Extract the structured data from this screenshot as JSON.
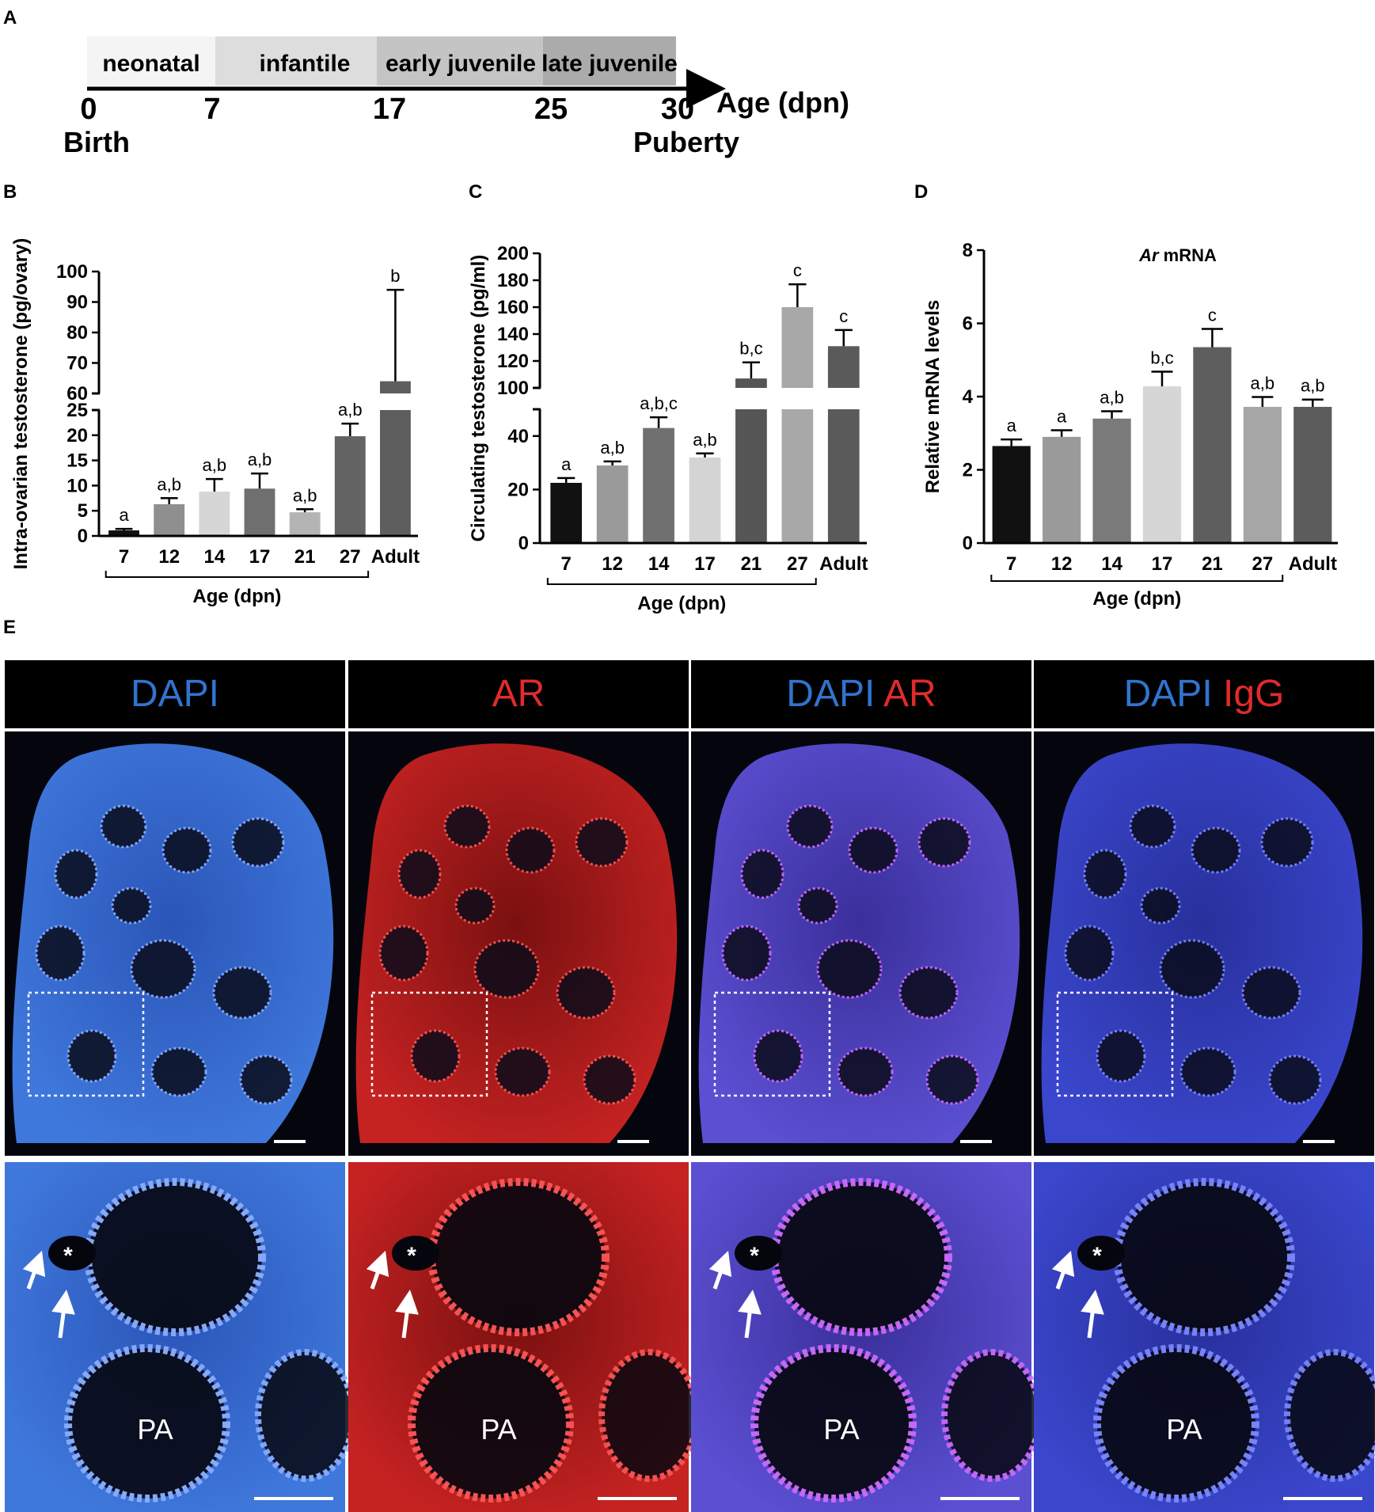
{
  "panel_labels": {
    "a": "A",
    "b": "B",
    "c": "C",
    "d": "D",
    "e": "E"
  },
  "timeline": {
    "stages": [
      "neonatal",
      "infantile",
      "early juvenile",
      "late juvenile"
    ],
    "stage_colors": [
      "#f4f4f4",
      "#dddddd",
      "#c4c4c4",
      "#ababab"
    ],
    "ticks": [
      "0",
      "7",
      "17",
      "25",
      "30"
    ],
    "axis_label": "Age (dpn)",
    "start_label": "Birth",
    "end_label": "Puberty"
  },
  "chart_data": [
    {
      "panel": "B",
      "type": "bar",
      "categories": [
        "7",
        "12",
        "14",
        "17",
        "21",
        "27",
        "Adult"
      ],
      "values": [
        1.1,
        6.3,
        8.8,
        9.4,
        4.7,
        19.8,
        64.0
      ],
      "errors": [
        0.3,
        1.2,
        2.5,
        3.0,
        0.6,
        2.5,
        30.0
      ],
      "letters": [
        "a",
        "a,b",
        "a,b",
        "a,b",
        "a,b",
        "a,b",
        "b"
      ],
      "colors": [
        "#111111",
        "#8f8f8f",
        "#d6d6d6",
        "#6f6f6f",
        "#b4b4b4",
        "#636363",
        "#5e5e5e"
      ],
      "ylabel": "Intra-ovarian testosterone (pg/ovary)",
      "xlabel": "Age (dpn)",
      "y_ticks_low": [
        "0",
        "5",
        "10",
        "15",
        "20",
        "25"
      ],
      "y_ticks_high": [
        "60",
        "70",
        "80",
        "90",
        "100"
      ],
      "ylim_low": [
        0,
        25
      ],
      "ylim_high": [
        60,
        100
      ]
    },
    {
      "panel": "C",
      "type": "bar",
      "categories": [
        "7",
        "12",
        "14",
        "17",
        "21",
        "27",
        "Adult"
      ],
      "values": [
        22.5,
        29.0,
        43.0,
        32.0,
        107.0,
        160.0,
        131.0
      ],
      "errors": [
        1.8,
        1.5,
        4.0,
        1.5,
        12.0,
        17.0,
        12.0
      ],
      "letters": [
        "a",
        "a,b",
        "a,b,c",
        "a,b",
        "b,c",
        "c",
        "c"
      ],
      "colors": [
        "#111111",
        "#9a9a9a",
        "#707070",
        "#d4d4d4",
        "#565656",
        "#a8a8a8",
        "#5a5a5a"
      ],
      "ylabel": "Circulating testosterone (pg/ml)",
      "xlabel": "Age (dpn)",
      "y_ticks_low": [
        "0",
        "20",
        "40"
      ],
      "y_ticks_high": [
        "100",
        "120",
        "140",
        "160",
        "180",
        "200"
      ],
      "ylim_low": [
        0,
        50
      ],
      "ylim_high": [
        100,
        200
      ]
    },
    {
      "panel": "D",
      "type": "bar",
      "title_italic": "Ar",
      "title_rest": " mRNA",
      "categories": [
        "7",
        "12",
        "14",
        "17",
        "21",
        "27",
        "Adult"
      ],
      "values": [
        2.65,
        2.9,
        3.4,
        4.28,
        5.35,
        3.72,
        3.72
      ],
      "errors": [
        0.18,
        0.18,
        0.2,
        0.4,
        0.5,
        0.27,
        0.2
      ],
      "letters": [
        "a",
        "a",
        "a,b",
        "b,c",
        "c",
        "a,b",
        "a,b"
      ],
      "colors": [
        "#111111",
        "#9a9a9a",
        "#7a7a7a",
        "#d6d6d6",
        "#5e5e5e",
        "#a6a6a6",
        "#5c5c5c"
      ],
      "ylabel": "Relative mRNA levels",
      "xlabel": "Age (dpn)",
      "y_ticks": [
        "0",
        "2",
        "4",
        "6",
        "8"
      ],
      "ylim": [
        0,
        8
      ]
    }
  ],
  "panel_e": {
    "headers": [
      {
        "parts": [
          {
            "text": "DAPI",
            "color": "#2f74d0"
          }
        ]
      },
      {
        "parts": [
          {
            "text": "AR",
            "color": "#e02b2b"
          }
        ]
      },
      {
        "parts": [
          {
            "text": "DAPI",
            "color": "#2f74d0"
          },
          {
            "text": "AR",
            "color": "#e02b2b"
          }
        ]
      },
      {
        "parts": [
          {
            "text": "DAPI",
            "color": "#2f74d0"
          },
          {
            "text": "IgG",
            "color": "#e02b2b"
          }
        ]
      }
    ],
    "zoom_label": "PA",
    "asterisk": "*",
    "channel_colors": [
      "#3b6ad8",
      "#d02020",
      "#5a48d0",
      "#3436c4"
    ]
  }
}
